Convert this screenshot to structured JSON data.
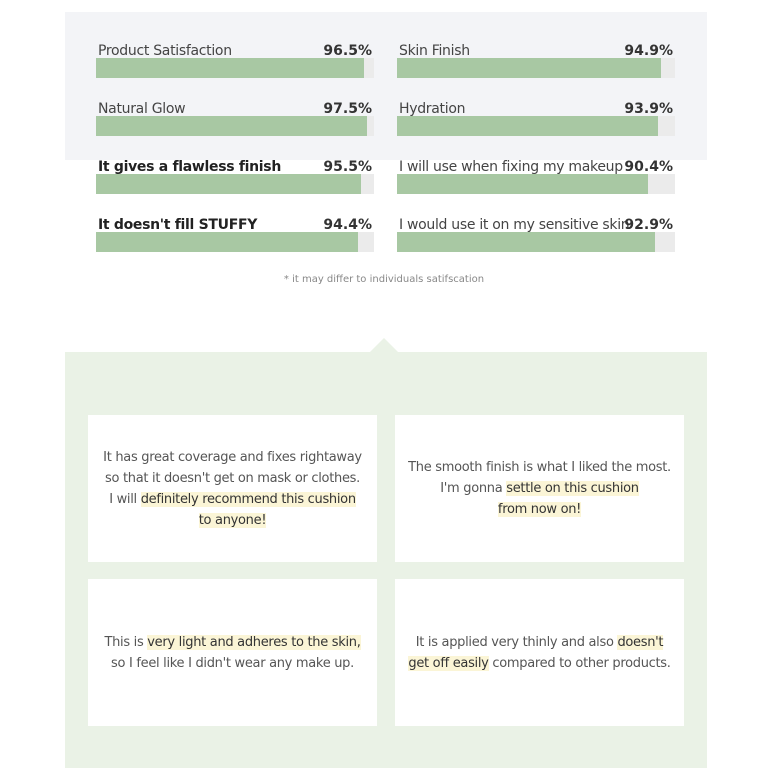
{
  "stats": {
    "items": [
      {
        "label": "Product Satisfaction",
        "value": 96.5,
        "value_label": "96.5%",
        "bold": false
      },
      {
        "label": "Skin Finish",
        "value": 94.9,
        "value_label": "94.9%",
        "bold": false
      },
      {
        "label": "Natural Glow",
        "value": 97.5,
        "value_label": "97.5%",
        "bold": false
      },
      {
        "label": "Hydration",
        "value": 93.9,
        "value_label": "93.9%",
        "bold": false
      },
      {
        "label": "It gives a flawless finish",
        "value": 95.5,
        "value_label": "95.5%",
        "bold": true
      },
      {
        "label": "I will use when fixing my makeup",
        "value": 90.4,
        "value_label": "90.4%",
        "bold": false
      },
      {
        "label": "It doesn't fill STUFFY",
        "value": 94.4,
        "value_label": "94.4%",
        "bold": true
      },
      {
        "label": "I would use it on my sensitive skin",
        "value": 92.9,
        "value_label": "92.9%",
        "bold": false
      }
    ],
    "max": 100,
    "bar_color": "#a8c8a3",
    "track_color": "#ebebeb",
    "footnote": "* it may differ to individuals satifscation"
  },
  "reviews": [
    {
      "lines": [
        [
          {
            "text": "It has great coverage and fixes rightaway",
            "highlight": false
          }
        ],
        [
          {
            "text": "so that it doesn't get on mask or clothes.",
            "highlight": false
          }
        ],
        [
          {
            "text": "I will ",
            "highlight": false
          },
          {
            "text": "definitely recommend this cushion",
            "highlight": true
          }
        ],
        [
          {
            "text": "to anyone!",
            "highlight": true
          }
        ]
      ]
    },
    {
      "lines": [
        [
          {
            "text": "The smooth finish is what I liked the most.",
            "highlight": false
          }
        ],
        [
          {
            "text": "I'm gonna ",
            "highlight": false
          },
          {
            "text": "settle on this cushion",
            "highlight": true
          }
        ],
        [
          {
            "text": "from now on!",
            "highlight": true
          }
        ]
      ]
    },
    {
      "lines": [
        [
          {
            "text": "This is ",
            "highlight": false
          },
          {
            "text": "very light and adheres to the skin,",
            "highlight": true
          }
        ],
        [
          {
            "text": "so I feel like I didn't wear any make up.",
            "highlight": false
          }
        ]
      ]
    },
    {
      "lines": [
        [
          {
            "text": "It is applied very thinly and also ",
            "highlight": false
          },
          {
            "text": "doesn't",
            "highlight": true
          }
        ],
        [
          {
            "text": "get off easily",
            "highlight": true
          },
          {
            "text": " compared to other products.",
            "highlight": false
          }
        ]
      ]
    }
  ]
}
